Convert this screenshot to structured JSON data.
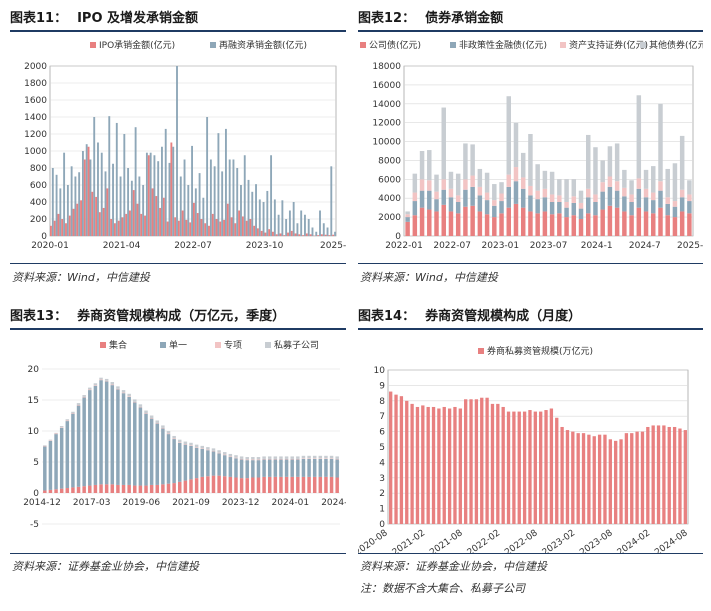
{
  "colors": {
    "red": "#e88080",
    "blue": "#8ea7b8",
    "gray": "#c8cdd2",
    "pale": "#f2c4c4",
    "rule": "#1f3b63"
  },
  "panels": {
    "p11": {
      "num": "图表11：",
      "title": "IPO 及增发承销金额",
      "source": "资料来源：Wind，中信建投"
    },
    "p12": {
      "num": "图表12：",
      "title": "债券承销金额",
      "source": "资料来源：Wind，中信建投"
    },
    "p13": {
      "num": "图表13：",
      "title": "券商资管规模构成（万亿元，季度）",
      "source": "资料来源：证券基金业协会，中信建投"
    },
    "p14": {
      "num": "图表14：",
      "title": "券商资管规模构成（月度）",
      "source": "资料来源：证券基金业协会，中信建投",
      "note": "注：数据不含大集合、私募子公司"
    }
  },
  "chart_data": [
    {
      "id": "c11",
      "type": "bar",
      "legend": [
        "IPO承销金额(亿元)",
        "再融资承销金额(亿元)"
      ],
      "x_ticks": [
        "2020-01",
        "2021-04",
        "2022-07",
        "2023-10",
        "2025-1"
      ],
      "ylim": [
        0,
        2000
      ],
      "y_ticks": [
        0,
        200,
        400,
        600,
        800,
        1000,
        1200,
        1400,
        1600,
        1800,
        2000
      ],
      "series": [
        {
          "name": "IPO承销金额(亿元)",
          "values": [
            120,
            180,
            260,
            200,
            150,
            240,
            320,
            380,
            420,
            900,
            1050,
            520,
            460,
            280,
            330,
            560,
            200,
            150,
            180,
            220,
            260,
            300,
            540,
            380,
            260,
            240,
            950,
            560,
            470,
            330,
            450,
            170,
            1100,
            220,
            180,
            300,
            190,
            160,
            390,
            270,
            200,
            150,
            120,
            260,
            200,
            170,
            190,
            380,
            220,
            150,
            300,
            230,
            180,
            200,
            120,
            90,
            60,
            40,
            80,
            50,
            20,
            30,
            10,
            40,
            60,
            30,
            20,
            10,
            30,
            20,
            5,
            10,
            20,
            15,
            10,
            15
          ]
        },
        {
          "name": "再融资承销金额(亿元)",
          "values": [
            800,
            720,
            560,
            980,
            600,
            820,
            700,
            750,
            1000,
            1080,
            900,
            1400,
            1100,
            980,
            760,
            1410,
            850,
            1330,
            700,
            1200,
            800,
            650,
            1280,
            700,
            600,
            980,
            980,
            950,
            880,
            1050,
            1260,
            860,
            1050,
            2000,
            700,
            900,
            600,
            1060,
            560,
            740,
            450,
            1400,
            900,
            820,
            1210,
            760,
            1260,
            900,
            900,
            800,
            600,
            950,
            660,
            520,
            610,
            430,
            400,
            530,
            950,
            430,
            250,
            420,
            200,
            300,
            400,
            150,
            300,
            250,
            200,
            100,
            50,
            300,
            150,
            100,
            820,
            50
          ]
        }
      ]
    },
    {
      "id": "c12",
      "type": "bar",
      "legend": [
        "公司债(亿元)",
        "非政策性金融债(亿元)",
        "资产支持证券(亿元)",
        "其他债券(亿元)"
      ],
      "x_ticks": [
        "2022-01",
        "2022-07",
        "2023-01",
        "2023-07",
        "2024-1",
        "2024-7",
        "2025-1"
      ],
      "ylim": [
        0,
        18000
      ],
      "y_ticks": [
        0,
        2000,
        4000,
        6000,
        8000,
        10000,
        12000,
        14000,
        16000,
        18000
      ],
      "series": [
        {
          "name": "公司债(亿元)",
          "values": [
            1500,
            2200,
            3000,
            2800,
            2600,
            3300,
            2600,
            2400,
            3100,
            3200,
            2600,
            2300,
            2000,
            2400,
            3000,
            3400,
            3000,
            2600,
            2400,
            2600,
            2300,
            2400,
            2000,
            2200,
            1800,
            2400,
            2200,
            2800,
            3200,
            3000,
            2600,
            2200,
            3000,
            2600,
            2400,
            3000,
            2200,
            2000,
            2600,
            2400
          ]
        },
        {
          "name": "非政策性金融债(亿元)",
          "values": [
            500,
            1500,
            1800,
            2000,
            1300,
            1600,
            1500,
            1200,
            1800,
            2000,
            1700,
            1500,
            1200,
            1300,
            2200,
            2400,
            2000,
            1700,
            1500,
            1500,
            1300,
            1200,
            1000,
            1300,
            1100,
            1700,
            1400,
            1900,
            2000,
            1800,
            1600,
            1400,
            2000,
            1500,
            1400,
            1800,
            1200,
            1100,
            1500,
            1300
          ]
        },
        {
          "name": "资产支持证券(亿元)",
          "values": [
            300,
            900,
            1200,
            1100,
            800,
            1100,
            900,
            700,
            1100,
            1200,
            900,
            800,
            600,
            800,
            1300,
            1500,
            1200,
            1000,
            900,
            900,
            800,
            700,
            600,
            700,
            600,
            900,
            800,
            1000,
            1100,
            1000,
            900,
            800,
            1100,
            900,
            800,
            1000,
            700,
            600,
            800,
            700
          ]
        },
        {
          "name": "其他债券(亿元)",
          "values": [
            300,
            2000,
            3000,
            3200,
            1800,
            7600,
            1800,
            2300,
            3800,
            3300,
            1900,
            2100,
            1700,
            1200,
            8300,
            4700,
            2600,
            5500,
            2800,
            1900,
            2400,
            1700,
            2400,
            1800,
            1300,
            5700,
            5000,
            2300,
            3200,
            4000,
            1900,
            1500,
            8800,
            2000,
            2800,
            8200,
            3000,
            4000,
            5700,
            1500
          ]
        }
      ]
    },
    {
      "id": "c13",
      "type": "bar",
      "legend": [
        "集合",
        "单一",
        "专项",
        "私募子公司"
      ],
      "x_ticks": [
        "2014-12",
        "2017-03",
        "2019-06",
        "2021-09",
        "2023-12",
        "2024-01",
        "2024-10"
      ],
      "ylim": [
        -5,
        20
      ],
      "y_ticks": [
        -5,
        0,
        5,
        10,
        15,
        20
      ],
      "series": [
        {
          "name": "集合",
          "values": [
            0.4,
            0.5,
            0.6,
            0.7,
            0.8,
            0.9,
            1.0,
            1.1,
            1.2,
            1.3,
            1.4,
            1.4,
            1.4,
            1.3,
            1.3,
            1.3,
            1.2,
            1.2,
            1.2,
            1.3,
            1.3,
            1.4,
            1.5,
            1.6,
            1.8,
            2.0,
            2.2,
            2.4,
            2.6,
            2.7,
            2.8,
            2.8,
            2.7,
            2.6,
            2.5,
            2.4,
            2.4,
            2.5,
            2.5,
            2.6,
            2.6,
            2.6,
            2.6,
            2.6,
            2.6,
            2.6,
            2.6,
            2.6,
            2.6,
            2.6,
            2.6,
            2.6,
            2.5
          ]
        },
        {
          "name": "单一",
          "values": [
            7.1,
            7.9,
            8.9,
            9.8,
            10.8,
            11.9,
            13.1,
            14.3,
            15.4,
            16.0,
            16.8,
            16.6,
            16.0,
            15.4,
            14.8,
            14.2,
            13.4,
            12.6,
            11.6,
            10.7,
            9.9,
            9.0,
            8.0,
            7.1,
            6.3,
            5.8,
            5.4,
            4.9,
            4.5,
            4.2,
            3.9,
            3.6,
            3.4,
            3.2,
            3.1,
            3.0,
            2.9,
            2.8,
            2.8,
            2.8,
            2.8,
            2.8,
            2.8,
            2.8,
            2.8,
            2.8,
            2.9,
            2.9,
            2.9,
            2.9,
            2.9,
            2.9,
            2.9
          ]
        },
        {
          "name": "专项",
          "values": [
            0.1,
            0.1,
            0.1,
            0.1,
            0.1,
            0.1,
            0.1,
            0.1,
            0.1,
            0.1,
            0.1,
            0.1,
            0.1,
            0.1,
            0.1,
            0.1,
            0.1,
            0.1,
            0.1,
            0.1,
            0.1,
            0.1,
            0.1,
            0.1,
            0.1,
            0.1,
            0.1,
            0.1,
            0.1,
            0.1,
            0.1,
            0.1,
            0.1,
            0.1,
            0.1,
            0.1,
            0.1,
            0.1,
            0.1,
            0.1,
            0.1,
            0.1,
            0.1,
            0.1,
            0.1,
            0.1,
            0.1,
            0.1,
            0.1,
            0.1,
            0.1,
            0.1,
            0.1
          ]
        },
        {
          "name": "私募子公司",
          "values": [
            0.1,
            0.1,
            0.1,
            0.2,
            0.2,
            0.2,
            0.3,
            0.3,
            0.3,
            0.3,
            0.3,
            0.3,
            0.4,
            0.4,
            0.4,
            0.4,
            0.4,
            0.4,
            0.4,
            0.4,
            0.4,
            0.4,
            0.4,
            0.4,
            0.4,
            0.4,
            0.4,
            0.4,
            0.4,
            0.4,
            0.4,
            0.4,
            0.4,
            0.4,
            0.4,
            0.4,
            0.4,
            0.4,
            0.4,
            0.4,
            0.4,
            0.4,
            0.4,
            0.4,
            0.4,
            0.4,
            0.4,
            0.4,
            0.4,
            0.4,
            0.4,
            0.4,
            0.4
          ]
        }
      ]
    },
    {
      "id": "c14",
      "type": "bar",
      "legend": [
        "券商私募资管规模(万亿元)"
      ],
      "x_ticks": [
        "2020-08",
        "2021-02",
        "2021-08",
        "2022-02",
        "2022-08",
        "2023-02",
        "2023-08",
        "2024-02",
        "2024-08"
      ],
      "ylim": [
        0,
        10
      ],
      "y_ticks": [
        0,
        1,
        2,
        3,
        4,
        5,
        6,
        7,
        8,
        9,
        10
      ],
      "series": [
        {
          "name": "券商私募资管规模(万亿元)",
          "values": [
            8.6,
            8.4,
            8.3,
            8.0,
            7.8,
            7.6,
            7.7,
            7.6,
            7.6,
            7.5,
            7.6,
            7.5,
            7.6,
            7.5,
            8.1,
            8.1,
            8.1,
            8.2,
            8.2,
            7.8,
            7.8,
            7.6,
            7.3,
            7.3,
            7.3,
            7.3,
            7.4,
            7.3,
            7.3,
            7.4,
            7.5,
            6.9,
            6.3,
            6.1,
            6.0,
            5.9,
            5.9,
            5.8,
            5.7,
            5.8,
            5.8,
            5.5,
            5.4,
            5.5,
            5.9,
            5.9,
            6.0,
            6.0,
            6.3,
            6.4,
            6.4,
            6.4,
            6.3,
            6.3,
            6.2,
            6.1
          ]
        }
      ]
    }
  ]
}
